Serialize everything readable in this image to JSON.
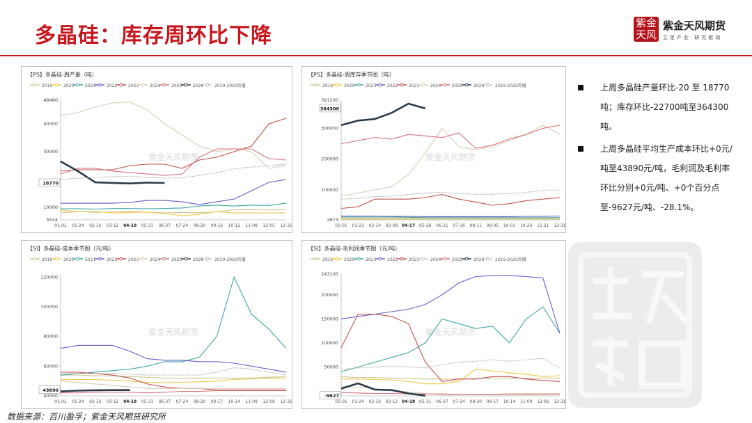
{
  "header": {
    "title": "多晶硅：库存周环比下降",
    "logo_text": "紫金天风",
    "brand": "紫金天风期货",
    "slogan": "立足产业 研究驱动"
  },
  "summary": {
    "items": [
      "上周多晶硅产量环比-20 至 18770吨；库存环比-22700吨至364300吨。",
      "上周多晶硅平均生产成本环比+0元/吨至43890元/吨，毛利润及毛利率环比分别+0元/吨、+0个百分点至-9627元/吨、-28.1%。"
    ]
  },
  "source": "数据来源：百川盈孚；紫金天风期货研究所",
  "chart_data": [
    {
      "type": "line",
      "title": "【PS】多晶硅-周产量（吨）",
      "watermark": "紫金天风期货",
      "legend": [
        "2019",
        "2020",
        "2021",
        "2022",
        "2023",
        "2024",
        "2025",
        "2026",
        "2019-2025均值"
      ],
      "colors": [
        "#c9c58f",
        "#f2c744",
        "#3aa6a0",
        "#6a5acd",
        "#c0504d",
        "#d9cdb4",
        "#d9707a",
        "#2b3a4a",
        "#b0b0b0"
      ],
      "x_ticks": [
        "01-01",
        "01-24",
        "02-16",
        "03-12",
        "04-18",
        "05-31",
        "06-27",
        "07-24",
        "08-20",
        "09-16",
        "10-12",
        "11-08",
        "12-05",
        "12-31"
      ],
      "highlight_x": "04-18",
      "y_ticks": [
        5534,
        10000,
        30000,
        40000,
        48480
      ],
      "current_value": 18770,
      "ylim": [
        5534,
        48480
      ],
      "series": [
        {
          "name": "2019",
          "values": [
            8000,
            8500,
            8200,
            8400,
            8600,
            8300,
            8000,
            8200,
            8100,
            8400,
            9200,
            9200,
            9100,
            9200
          ]
        },
        {
          "name": "2020",
          "values": [
            9000,
            8500,
            8500,
            8000,
            8200,
            8300,
            7800,
            7000,
            7500,
            8500,
            8000,
            8000,
            8000,
            8000
          ]
        },
        {
          "name": "2021",
          "values": [
            9500,
            9500,
            9400,
            9600,
            9600,
            9500,
            9600,
            9800,
            10500,
            10800,
            10500,
            10800,
            10700,
            11500
          ]
        },
        {
          "name": "2022",
          "values": [
            11500,
            11500,
            11500,
            11500,
            11800,
            12500,
            12500,
            12000,
            11000,
            12000,
            13000,
            16000,
            19000,
            20000
          ]
        },
        {
          "name": "2023",
          "values": [
            23000,
            23500,
            23500,
            23500,
            25000,
            25500,
            25500,
            24000,
            27000,
            28000,
            30000,
            32000,
            40000,
            42000
          ]
        },
        {
          "name": "2024",
          "values": [
            43000,
            44000,
            46000,
            47500,
            47800,
            45000,
            40000,
            36000,
            32000,
            30000,
            31000,
            30000,
            24000,
            25000
          ]
        },
        {
          "name": "2025",
          "values": [
            22000,
            24000,
            24000,
            23000,
            22500,
            22000,
            21500,
            22000,
            28000,
            31000,
            31000,
            31000,
            27500,
            27000
          ]
        },
        {
          "name": "2026",
          "values": [
            26500,
            23000,
            19000,
            18800,
            18600,
            18900,
            18770
          ]
        },
        {
          "name": "2019-2025均值",
          "values": [
            20000,
            20500,
            20800,
            21000,
            21200,
            20800,
            20500,
            20600,
            21500,
            22500,
            23800,
            24500,
            25000,
            25500
          ]
        }
      ]
    },
    {
      "type": "line",
      "title": "【PS】多晶硅-周库存季节图（吨）",
      "watermark": "紫金天风期货",
      "legend": [
        "2019",
        "2020",
        "2021",
        "2022",
        "2023",
        "2024",
        "2025",
        "2026",
        "2019-2025均值"
      ],
      "colors": [
        "#c9c58f",
        "#f2c744",
        "#3aa6a0",
        "#6a5acd",
        "#c0504d",
        "#d9cdb4",
        "#d9707a",
        "#2b3a4a",
        "#b0b0b0"
      ],
      "x_ticks": [
        "01-01",
        "01-23",
        "02-14",
        "03-08",
        "04-17",
        "05-26",
        "06-21",
        "07-16",
        "08-11",
        "09-05",
        "10-01",
        "10-26",
        "11-21",
        "12-31"
      ],
      "highlight_x": "04-17",
      "y_ticks": [
        2673,
        100000,
        200000,
        300000,
        391200
      ],
      "current_value": 364300,
      "ylim": [
        2673,
        391200
      ],
      "series": [
        {
          "name": "2019",
          "values": [
            5000,
            5000,
            5000,
            5000,
            5000,
            5000,
            5000,
            5000,
            5000,
            5000,
            5000,
            5000,
            5000,
            5000
          ]
        },
        {
          "name": "2020",
          "values": [
            8000,
            8000,
            8000,
            8000,
            8000,
            8000,
            8000,
            8000,
            8000,
            8000,
            8000,
            8000,
            8000,
            8000
          ]
        },
        {
          "name": "2021",
          "values": [
            12000,
            12000,
            12000,
            12000,
            11000,
            10000,
            10000,
            10000,
            10000,
            10000,
            10000,
            10000,
            10000,
            10000
          ]
        },
        {
          "name": "2022",
          "values": [
            15000,
            15000,
            15000,
            14000,
            14000,
            13000,
            13000,
            13000,
            13000,
            13000,
            13000,
            14000,
            14000,
            15000
          ]
        },
        {
          "name": "2023",
          "values": [
            40000,
            45000,
            70000,
            70000,
            70000,
            75000,
            85000,
            70000,
            60000,
            50000,
            55000,
            65000,
            70000,
            75000
          ]
        },
        {
          "name": "2024",
          "values": [
            80000,
            90000,
            100000,
            110000,
            150000,
            220000,
            300000,
            240000,
            230000,
            240000,
            260000,
            280000,
            310000,
            280000
          ]
        },
        {
          "name": "2025",
          "values": [
            250000,
            260000,
            270000,
            265000,
            280000,
            275000,
            270000,
            285000,
            235000,
            245000,
            265000,
            280000,
            300000,
            310000
          ]
        },
        {
          "name": "2026",
          "values": [
            310000,
            325000,
            330000,
            350000,
            380000,
            364300
          ]
        },
        {
          "name": "2019-2025均值",
          "values": [
            70000,
            72000,
            78000,
            80000,
            85000,
            90000,
            92000,
            88000,
            85000,
            86000,
            88000,
            92000,
            98000,
            100000
          ]
        }
      ]
    },
    {
      "type": "line",
      "title": "【SI】多晶硅-成本季节图（元/吨）",
      "watermark": "紫金天风期货",
      "legend": [
        "2019",
        "2020",
        "2021",
        "2022",
        "2023",
        "2024",
        "2025",
        "2026",
        "2019-2025均值"
      ],
      "colors": [
        "#c9c58f",
        "#f2c744",
        "#3aa6a0",
        "#6a5acd",
        "#c0504d",
        "#d9cdb4",
        "#d9707a",
        "#2b3a4a",
        "#b0b0b0"
      ],
      "x_ticks": [
        "01-01",
        "01-24",
        "02-16",
        "03-12",
        "04-18",
        "05-31",
        "06-27",
        "07-24",
        "08-20",
        "09-17",
        "10-14",
        "11-09",
        "12-06",
        "12-31"
      ],
      "highlight_x": "04-18",
      "y_ticks": [
        40000,
        60000,
        80000,
        100000,
        120000
      ],
      "current_value": 43890,
      "ylim": [
        40000,
        122000
      ],
      "series": [
        {
          "name": "2019",
          "values": [
            54000,
            54000,
            53500,
            53500,
            53000,
            52500,
            52000,
            52000,
            52000,
            52000,
            52000,
            52000,
            52500,
            53000
          ]
        },
        {
          "name": "2020",
          "values": [
            51000,
            51000,
            51000,
            50500,
            50000,
            49000,
            49000,
            49000,
            49500,
            50000,
            51000,
            51500,
            52000,
            52000
          ]
        },
        {
          "name": "2021",
          "values": [
            54000,
            55000,
            56000,
            57000,
            58000,
            60000,
            63000,
            63000,
            66000,
            80000,
            120000,
            95000,
            85000,
            72000
          ]
        },
        {
          "name": "2022",
          "values": [
            72000,
            74000,
            74000,
            74000,
            70000,
            65000,
            64000,
            64000,
            63000,
            63000,
            62000,
            60000,
            58000,
            56000
          ]
        },
        {
          "name": "2023",
          "values": [
            56000,
            56000,
            55000,
            54000,
            52000,
            48000,
            46000,
            45000,
            45000,
            44000,
            44000,
            44000,
            44000,
            44000
          ]
        },
        {
          "name": "2024",
          "values": [
            50000,
            49000,
            48000,
            47000,
            46000,
            45000,
            45000,
            45000,
            45000,
            45000,
            45000,
            45000,
            45000,
            45000
          ]
        },
        {
          "name": "2025",
          "values": [
            42000,
            42000,
            42500,
            42500,
            42500,
            42000,
            42500,
            43000,
            43000,
            43500,
            43500,
            43500,
            43500,
            43500
          ]
        },
        {
          "name": "2026",
          "values": [
            43000,
            43500,
            43800,
            43900,
            43890
          ]
        },
        {
          "name": "2019-2025均值",
          "values": [
            55000,
            55000,
            55000,
            55000,
            54500,
            54000,
            54000,
            54000,
            54000,
            56000,
            59000,
            58000,
            56000,
            54000
          ]
        }
      ]
    },
    {
      "type": "line",
      "title": "【SI】多晶硅-毛利润季节图（元/吨）",
      "watermark": "紫金天风期货",
      "legend": [
        "2019",
        "2020",
        "2021",
        "2022",
        "2023",
        "2024",
        "2025",
        "2026",
        "2019-2025均值"
      ],
      "colors": [
        "#c9c58f",
        "#f2c744",
        "#3aa6a0",
        "#6a5acd",
        "#c0504d",
        "#d9cdb4",
        "#d9707a",
        "#2b3a4a",
        "#b0b0b0"
      ],
      "x_ticks": [
        "01-01",
        "01-24",
        "02-16",
        "03-12",
        "04-18",
        "05-31",
        "06-27",
        "07-24",
        "08-20",
        "09-17",
        "10-14",
        "11-09",
        "12-06",
        "12-31"
      ],
      "highlight_x": "04-18",
      "y_ticks": [
        50000,
        100000,
        150000,
        200000,
        243100
      ],
      "current_value": -9627,
      "ylim": [
        -10000,
        243100
      ],
      "series": [
        {
          "name": "2019",
          "values": [
            30000,
            28000,
            28000,
            27000,
            26000,
            25000,
            25000,
            25000,
            26000,
            27000,
            27000,
            27000,
            27000,
            27000
          ]
        },
        {
          "name": "2020",
          "values": [
            25000,
            25000,
            24000,
            23000,
            20000,
            15000,
            15000,
            20000,
            45000,
            42000,
            38000,
            35000,
            30000,
            32000
          ]
        },
        {
          "name": "2021",
          "values": [
            40000,
            50000,
            60000,
            70000,
            80000,
            100000,
            150000,
            140000,
            130000,
            135000,
            100000,
            150000,
            175000,
            120000
          ]
        },
        {
          "name": "2022",
          "values": [
            150000,
            155000,
            160000,
            165000,
            170000,
            180000,
            200000,
            225000,
            238000,
            240000,
            240000,
            238000,
            235000,
            120000
          ]
        },
        {
          "name": "2023",
          "values": [
            90000,
            160000,
            160000,
            155000,
            140000,
            60000,
            20000,
            25000,
            25000,
            30000,
            30000,
            25000,
            22000,
            20000
          ]
        },
        {
          "name": "2024",
          "values": [
            10000,
            8000,
            5000,
            2000,
            -2000,
            -5000,
            -8000,
            -8000,
            -8000,
            -8000,
            -8000,
            -8000,
            -8000,
            -7000
          ]
        },
        {
          "name": "2025",
          "values": [
            -3000,
            -4000,
            -5000,
            -5000,
            -6000,
            -6000,
            -6000,
            -7000,
            -7000,
            -7000,
            -6000,
            -6000,
            -6000,
            -6000
          ]
        },
        {
          "name": "2026",
          "values": [
            5000,
            16000,
            3000,
            2000,
            -5000,
            -9627
          ]
        },
        {
          "name": "2019-2025均值",
          "values": [
            45000,
            48000,
            50000,
            52000,
            50000,
            48000,
            55000,
            60000,
            62000,
            65000,
            62000,
            65000,
            68000,
            48000
          ]
        }
      ]
    }
  ]
}
